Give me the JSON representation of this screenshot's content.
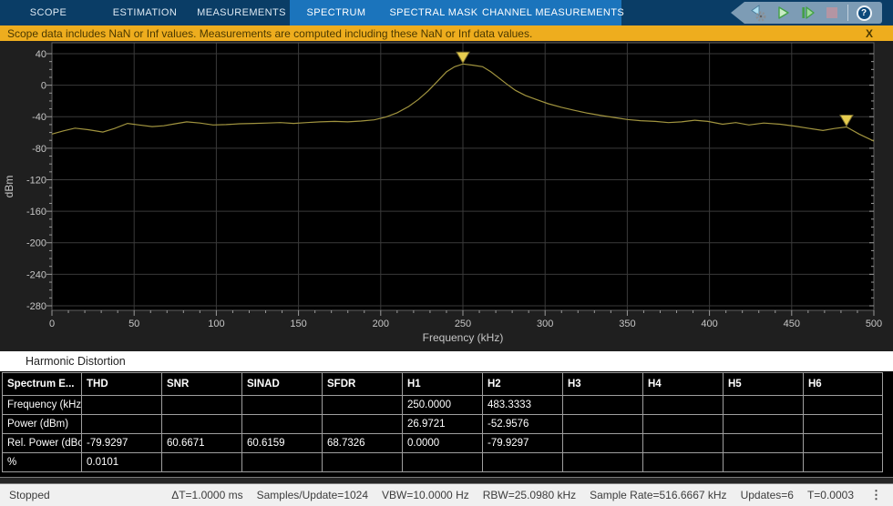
{
  "tabbar": {
    "tabs": [
      {
        "label": "SCOPE"
      },
      {
        "label": "ESTIMATION"
      },
      {
        "label": "MEASUREMENTS"
      },
      {
        "label": "SPECTRUM"
      },
      {
        "label": "SPECTRAL MASK"
      },
      {
        "label": "CHANNEL MEASUREMENTS"
      }
    ],
    "toolbar": {
      "help_label": "?"
    }
  },
  "banner": {
    "text": "Scope data includes NaN or Inf values. Measurements are computed including these NaN or Inf data values.",
    "close_label": "X"
  },
  "chart_data": {
    "type": "line",
    "xlabel": "Frequency (kHz)",
    "ylabel": "dBm",
    "xlim": [
      0,
      500
    ],
    "ylim": [
      -286,
      54
    ],
    "x_ticks": [
      0,
      50,
      100,
      150,
      200,
      250,
      300,
      350,
      400,
      450,
      500
    ],
    "y_ticks": [
      40,
      0,
      -40,
      -80,
      -120,
      -160,
      -200,
      -240,
      -280
    ],
    "grid": true,
    "colors": {
      "plot_bg": "#000000",
      "grid": "#3a3a3a",
      "frame": "#5f5f5f",
      "tick": "#9a9a9a",
      "tick_label": "#c6c6c6",
      "axis_label": "#c6c6c6",
      "marker_fill": "#e7cd4f",
      "marker_stroke": "#7a6d2f"
    },
    "series": [
      {
        "color": "#a1943f",
        "points": [
          [
            0,
            -62
          ],
          [
            7,
            -58
          ],
          [
            14,
            -54.5
          ],
          [
            22,
            -56.5
          ],
          [
            31,
            -59.5
          ],
          [
            38,
            -55
          ],
          [
            46,
            -48.5
          ],
          [
            53,
            -50.5
          ],
          [
            61,
            -52.5
          ],
          [
            68,
            -51.5
          ],
          [
            75,
            -49
          ],
          [
            82,
            -46.5
          ],
          [
            90,
            -48
          ],
          [
            98,
            -50.5
          ],
          [
            106,
            -50
          ],
          [
            114,
            -49
          ],
          [
            123,
            -48.5
          ],
          [
            131,
            -48
          ],
          [
            139,
            -47.5
          ],
          [
            147,
            -48.5
          ],
          [
            155,
            -47.5
          ],
          [
            163,
            -46.5
          ],
          [
            172,
            -46
          ],
          [
            180,
            -46.5
          ],
          [
            188,
            -45.5
          ],
          [
            196,
            -44
          ],
          [
            203,
            -40.5
          ],
          [
            210,
            -35
          ],
          [
            217,
            -27
          ],
          [
            223,
            -18
          ],
          [
            229,
            -7
          ],
          [
            235,
            6
          ],
          [
            240,
            17
          ],
          [
            245,
            23.5
          ],
          [
            250,
            26.97
          ],
          [
            256,
            25.5
          ],
          [
            262,
            23.5
          ],
          [
            267,
            17
          ],
          [
            272,
            9
          ],
          [
            277,
            1
          ],
          [
            282,
            -6.5
          ],
          [
            288,
            -13
          ],
          [
            295,
            -18.5
          ],
          [
            302,
            -23.5
          ],
          [
            310,
            -28
          ],
          [
            318,
            -32
          ],
          [
            326,
            -35.5
          ],
          [
            334,
            -38.5
          ],
          [
            342,
            -41
          ],
          [
            350,
            -43.5
          ],
          [
            358,
            -45
          ],
          [
            367,
            -46
          ],
          [
            375,
            -47.5
          ],
          [
            383,
            -46.5
          ],
          [
            391,
            -44.5
          ],
          [
            399,
            -46
          ],
          [
            408,
            -49.5
          ],
          [
            416,
            -47.5
          ],
          [
            424,
            -50.5
          ],
          [
            433,
            -48
          ],
          [
            443,
            -49.5
          ],
          [
            452,
            -52
          ],
          [
            461,
            -55
          ],
          [
            469,
            -57.5
          ],
          [
            476,
            -55
          ],
          [
            483.33,
            -52.96
          ],
          [
            491,
            -62
          ],
          [
            500,
            -71
          ]
        ]
      }
    ],
    "markers": [
      {
        "x": 250.0,
        "y": 26.9721
      },
      {
        "x": 483.3333,
        "y": -52.9576
      }
    ]
  },
  "panel": {
    "title": "Harmonic Distortion"
  },
  "table": {
    "headers": [
      "Spectrum E...",
      "THD",
      "SNR",
      "SINAD",
      "SFDR",
      "H1",
      "H2",
      "H3",
      "H4",
      "H5",
      "H6"
    ],
    "rows": [
      {
        "label": "Frequency (kHz)",
        "cells": [
          "",
          "",
          "",
          "",
          "250.0000",
          "483.3333",
          "",
          "",
          "",
          ""
        ]
      },
      {
        "label": "Power (dBm)",
        "cells": [
          "",
          "",
          "",
          "",
          "26.9721",
          "-52.9576",
          "",
          "",
          "",
          ""
        ]
      },
      {
        "label": "Rel. Power (dBc)",
        "cells": [
          "-79.9297",
          "60.6671",
          "60.6159",
          "68.7326",
          "0.0000",
          "-79.9297",
          "",
          "",
          "",
          ""
        ]
      },
      {
        "label": "%",
        "cells": [
          "0.0101",
          "",
          "",
          "",
          "",
          "",
          "",
          "",
          "",
          ""
        ]
      }
    ]
  },
  "statusbar": {
    "state": "Stopped",
    "metrics": [
      "ΔT=1.0000 ms",
      "Samples/Update=1024",
      "VBW=10.0000 Hz",
      "RBW=25.0980 kHz",
      "Sample Rate=516.6667 kHz",
      "Updates=6",
      "T=0.0003"
    ],
    "overflow_icon": "⋮"
  }
}
